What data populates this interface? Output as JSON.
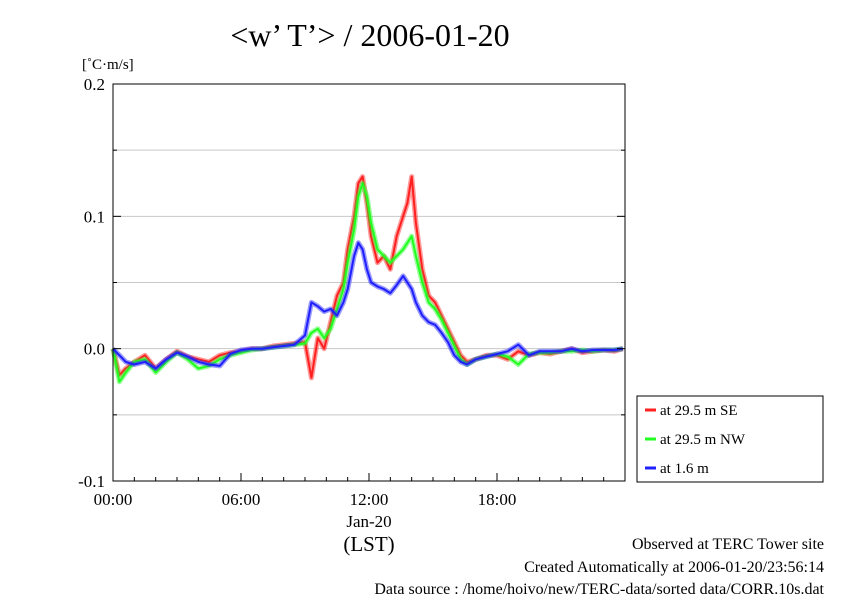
{
  "chart_data": {
    "type": "line",
    "title": "<w’ T’> / 2006-01-20",
    "ylabel": "[˚C·m/s]",
    "xlim": [
      0,
      24
    ],
    "ylim": [
      -0.1,
      0.2
    ],
    "yticks": [
      {
        "value": 0.2,
        "label": "0.2"
      },
      {
        "value": 0.1,
        "label": "0.1"
      },
      {
        "value": 0.0,
        "label": "0.0"
      },
      {
        "value": -0.1,
        "label": "-0.1"
      }
    ],
    "xticks": [
      {
        "value": 0,
        "label": "00:00"
      },
      {
        "value": 6,
        "label": "06:00"
      },
      {
        "value": 12,
        "label": "12:00"
      },
      {
        "value": 18,
        "label": "18:00"
      }
    ],
    "date_label": "Jan-20",
    "time_zone_label": "(LST)",
    "grid": true,
    "legend": "outside-right",
    "series": [
      {
        "name": "at 29.5 m SE",
        "color": "#ff2020",
        "x": [
          0,
          0.3,
          0.6,
          1.0,
          1.5,
          2.0,
          2.5,
          3.0,
          3.5,
          4.0,
          4.5,
          5.0,
          5.5,
          6.0,
          6.5,
          7.0,
          7.5,
          8.0,
          8.5,
          9.0,
          9.3,
          9.6,
          9.9,
          10.2,
          10.5,
          10.8,
          11.0,
          11.3,
          11.5,
          11.7,
          11.9,
          12.1,
          12.4,
          12.7,
          13.0,
          13.3,
          13.6,
          13.8,
          14.0,
          14.2,
          14.5,
          14.8,
          15.1,
          15.4,
          15.7,
          16.0,
          16.3,
          16.6,
          17.0,
          17.5,
          18.0,
          18.5,
          19.0,
          19.5,
          20.0,
          20.5,
          21.0,
          21.5,
          22.0,
          22.5,
          23.0,
          23.5,
          23.9
        ],
        "y": [
          0.0,
          -0.02,
          -0.015,
          -0.01,
          -0.005,
          -0.015,
          -0.008,
          -0.002,
          -0.006,
          -0.008,
          -0.01,
          -0.005,
          -0.003,
          -0.002,
          0.0,
          0.0,
          0.002,
          0.003,
          0.004,
          0.005,
          -0.022,
          0.008,
          0.0,
          0.02,
          0.04,
          0.05,
          0.075,
          0.1,
          0.125,
          0.13,
          0.11,
          0.085,
          0.065,
          0.07,
          0.06,
          0.085,
          0.1,
          0.11,
          0.13,
          0.095,
          0.06,
          0.04,
          0.035,
          0.025,
          0.015,
          0.005,
          -0.005,
          -0.01,
          -0.008,
          -0.005,
          -0.005,
          -0.008,
          -0.002,
          -0.005,
          -0.003,
          -0.004,
          -0.002,
          0.0,
          -0.003,
          -0.002,
          -0.001,
          -0.002,
          0.0
        ]
      },
      {
        "name": "at 29.5 m NW",
        "color": "#20ff20",
        "x": [
          0,
          0.3,
          0.6,
          1.0,
          1.5,
          2.0,
          2.5,
          3.0,
          3.5,
          4.0,
          4.5,
          5.0,
          5.5,
          6.0,
          6.5,
          7.0,
          7.5,
          8.0,
          8.5,
          9.0,
          9.3,
          9.6,
          9.9,
          10.2,
          10.5,
          10.8,
          11.0,
          11.3,
          11.5,
          11.7,
          11.9,
          12.1,
          12.4,
          12.7,
          13.0,
          13.3,
          13.6,
          13.8,
          14.0,
          14.2,
          14.5,
          14.8,
          15.1,
          15.4,
          15.7,
          16.0,
          16.3,
          16.6,
          17.0,
          17.5,
          18.0,
          18.5,
          19.0,
          19.5,
          20.0,
          20.5,
          21.0,
          21.5,
          22.0,
          22.5,
          23.0,
          23.5,
          23.9
        ],
        "y": [
          0.0,
          -0.025,
          -0.018,
          -0.01,
          -0.008,
          -0.018,
          -0.01,
          -0.003,
          -0.008,
          -0.015,
          -0.013,
          -0.008,
          -0.005,
          -0.003,
          -0.001,
          0.0,
          0.001,
          0.002,
          0.003,
          0.004,
          0.012,
          0.015,
          0.008,
          0.015,
          0.03,
          0.045,
          0.065,
          0.09,
          0.115,
          0.125,
          0.115,
          0.095,
          0.075,
          0.07,
          0.065,
          0.07,
          0.075,
          0.08,
          0.085,
          0.07,
          0.05,
          0.035,
          0.03,
          0.022,
          0.012,
          0.002,
          -0.008,
          -0.012,
          -0.008,
          -0.006,
          -0.004,
          -0.006,
          -0.012,
          -0.004,
          -0.003,
          -0.003,
          -0.002,
          -0.002,
          -0.001,
          -0.002,
          -0.001,
          -0.001,
          0.0
        ]
      },
      {
        "name": "at 1.6 m",
        "color": "#2020ff",
        "x": [
          0,
          0.3,
          0.6,
          1.0,
          1.5,
          2.0,
          2.5,
          3.0,
          3.5,
          4.0,
          4.5,
          5.0,
          5.5,
          6.0,
          6.5,
          7.0,
          7.5,
          8.0,
          8.5,
          9.0,
          9.3,
          9.6,
          9.9,
          10.2,
          10.5,
          10.8,
          11.0,
          11.3,
          11.5,
          11.7,
          11.9,
          12.1,
          12.4,
          12.7,
          13.0,
          13.3,
          13.6,
          13.8,
          14.0,
          14.2,
          14.5,
          14.8,
          15.1,
          15.4,
          15.7,
          16.0,
          16.3,
          16.6,
          17.0,
          17.5,
          18.0,
          18.5,
          19.0,
          19.5,
          20.0,
          20.5,
          21.0,
          21.5,
          22.0,
          22.5,
          23.0,
          23.5,
          23.9
        ],
        "y": [
          0.0,
          -0.005,
          -0.01,
          -0.012,
          -0.01,
          -0.015,
          -0.008,
          -0.003,
          -0.006,
          -0.01,
          -0.012,
          -0.013,
          -0.004,
          -0.001,
          0.0,
          0.0,
          0.001,
          0.002,
          0.003,
          0.01,
          0.035,
          0.032,
          0.028,
          0.03,
          0.025,
          0.035,
          0.045,
          0.07,
          0.08,
          0.075,
          0.06,
          0.05,
          0.047,
          0.045,
          0.042,
          0.048,
          0.055,
          0.05,
          0.045,
          0.035,
          0.025,
          0.02,
          0.018,
          0.012,
          0.005,
          -0.005,
          -0.01,
          -0.012,
          -0.008,
          -0.006,
          -0.004,
          -0.002,
          0.003,
          -0.005,
          -0.002,
          -0.002,
          -0.002,
          0.0,
          -0.002,
          -0.001,
          -0.001,
          -0.001,
          0.0
        ]
      }
    ]
  },
  "footer": {
    "site": "Observed at TERC Tower site",
    "created": "Created Automatically at 2006-01-20/23:56:14",
    "source": "Data source : /home/hoivo/new/TERC-data/sorted  data/CORR.10s.dat"
  }
}
